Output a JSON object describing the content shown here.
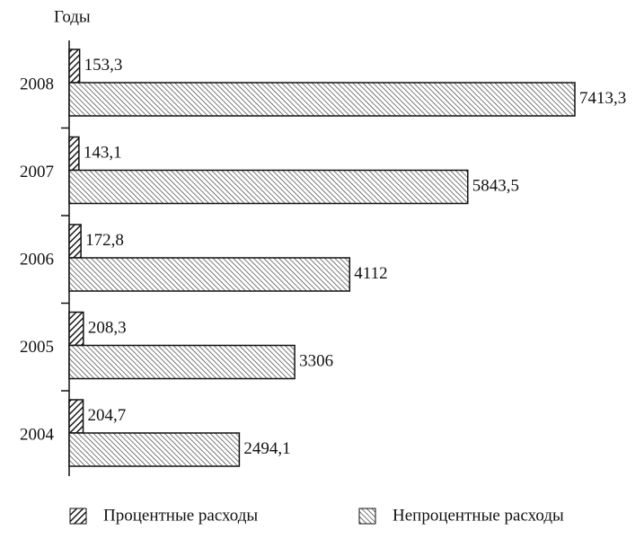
{
  "chart_data": {
    "type": "hbar",
    "y_label": "Годы",
    "categories": [
      "2008",
      "2007",
      "2006",
      "2005",
      "2004"
    ],
    "series": [
      {
        "name": "Процентные расходы",
        "color": "#1a1a1a",
        "values": [
          153.3,
          143.1,
          172.8,
          208.3,
          204.7
        ],
        "value_labels": [
          "153,3",
          "143,1",
          "172,8",
          "208,3",
          "204,7"
        ]
      },
      {
        "name": "Непроцентные расходы",
        "color": "#333333",
        "values": [
          7413.3,
          5843.5,
          4112,
          3306,
          2494.1
        ],
        "value_labels": [
          "7413,3",
          "5843,5",
          "4112",
          "3306",
          "2494,1"
        ]
      }
    ]
  }
}
